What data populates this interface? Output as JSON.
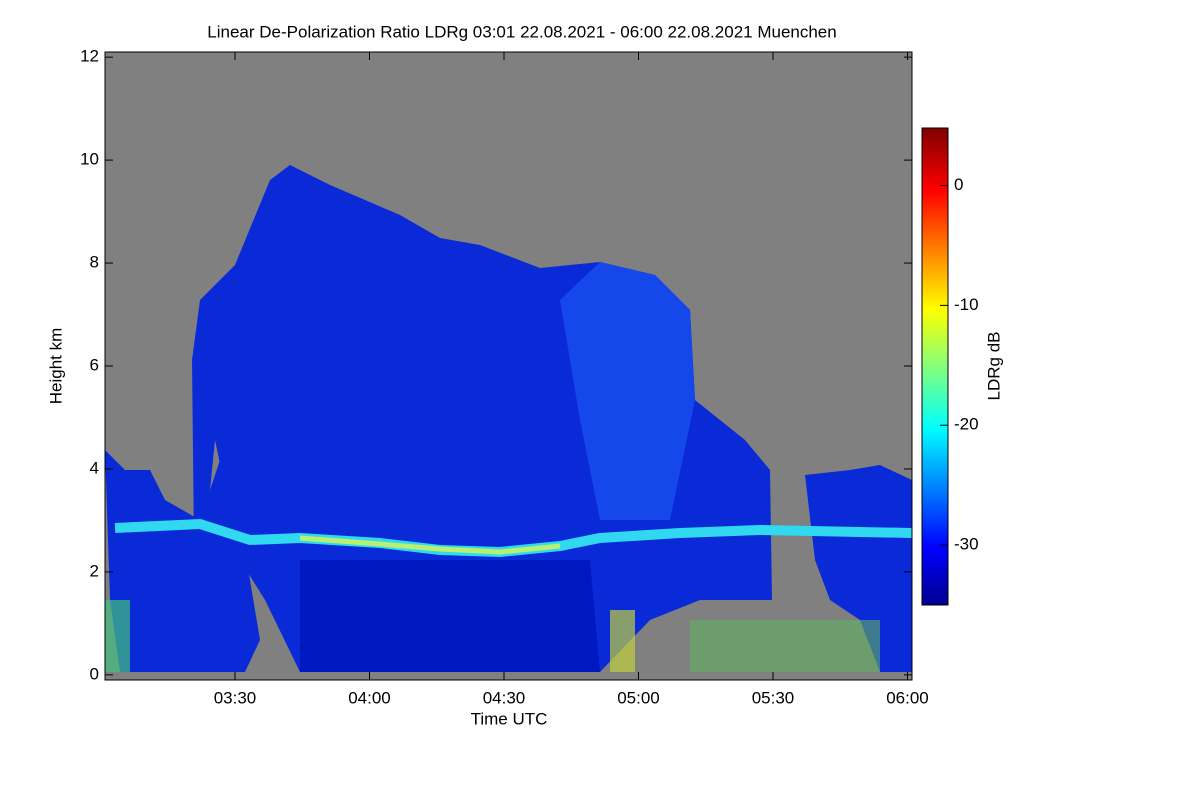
{
  "chart_data": {
    "type": "heatmap",
    "title": "Linear De-Polarization Ratio LDRg   03:01 22.08.2021 - 06:00 22.08.2021 Muenchen",
    "xlabel": "Time UTC",
    "ylabel": "Height km",
    "xlim": [
      3.0167,
      6.0167
    ],
    "xticks": [
      {
        "value": 3.5,
        "label": "03:30"
      },
      {
        "value": 4.0,
        "label": "04:00"
      },
      {
        "value": 4.5,
        "label": "04:30"
      },
      {
        "value": 5.0,
        "label": "05:00"
      },
      {
        "value": 5.5,
        "label": "05:30"
      },
      {
        "value": 6.0,
        "label": "06:00"
      }
    ],
    "ylim": [
      -0.1,
      12.1
    ],
    "yticks": [
      0,
      2,
      4,
      6,
      8,
      10,
      12
    ],
    "colorbar": {
      "label": "LDRg dB",
      "lim": [
        -35,
        4.8
      ],
      "ticks": [
        0,
        -10,
        -20,
        -30
      ],
      "colormap": "jet"
    },
    "background": "#808080"
  }
}
